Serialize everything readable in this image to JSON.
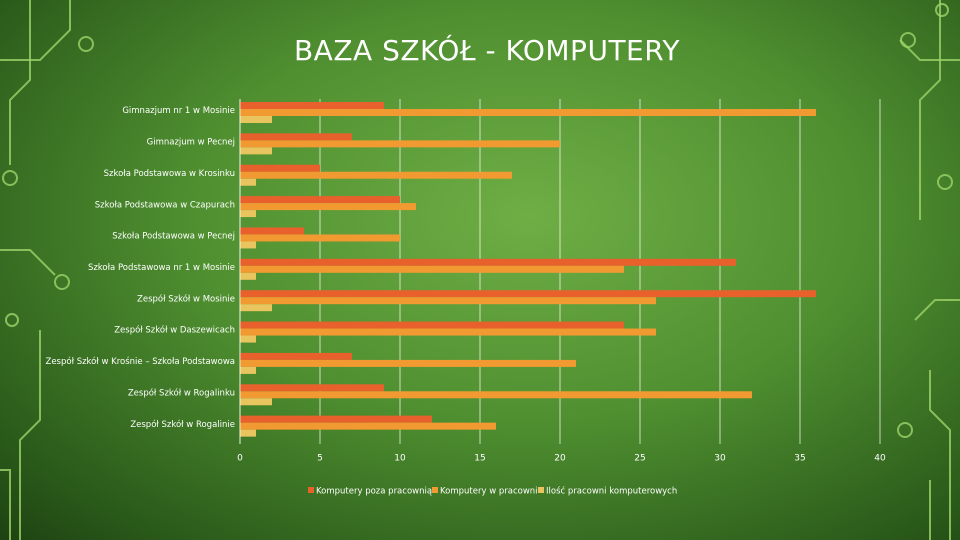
{
  "chart_data": {
    "type": "bar",
    "orientation": "horizontal",
    "title": "BAZA SZKÓŁ - KOMPUTERY",
    "categories": [
      "Gimnazjum nr 1 w Mosinie",
      "Gimnazjum w Pecnej",
      "Szkoła Podstawowa w Krosinku",
      "Szkoła Podstawowa w Czapurach",
      "Szkoła Podstawowa w Pecnej",
      "Szkoła Podstawowa nr 1 w Mosinie",
      "Zespół Szkół w Mosinie",
      "Zespół Szkół w Daszewicach",
      "Zespół Szkół w Krośnie – Szkoła Podstawowa",
      "Zespół Szkół w Rogalinku",
      "Zespół Szkół w Rogalinie"
    ],
    "series": [
      {
        "name": "Komputery poza pracownią",
        "color": "#e8612c",
        "values": [
          9,
          7,
          5,
          10,
          4,
          31,
          36,
          24,
          7,
          9,
          12
        ]
      },
      {
        "name": "Komputery w pracowni",
        "color": "#f29a32",
        "values": [
          36,
          20,
          17,
          11,
          10,
          24,
          26,
          26,
          21,
          32,
          16
        ]
      },
      {
        "name": "Ilość pracowni komputerowych",
        "color": "#e8c55e",
        "values": [
          2,
          2,
          1,
          1,
          1,
          1,
          2,
          1,
          1,
          2,
          1
        ]
      }
    ],
    "xlim": [
      0,
      40
    ],
    "xticks": [
      0,
      5,
      10,
      15,
      20,
      25,
      30,
      35,
      40
    ],
    "grid": true,
    "legend": "bottom"
  }
}
